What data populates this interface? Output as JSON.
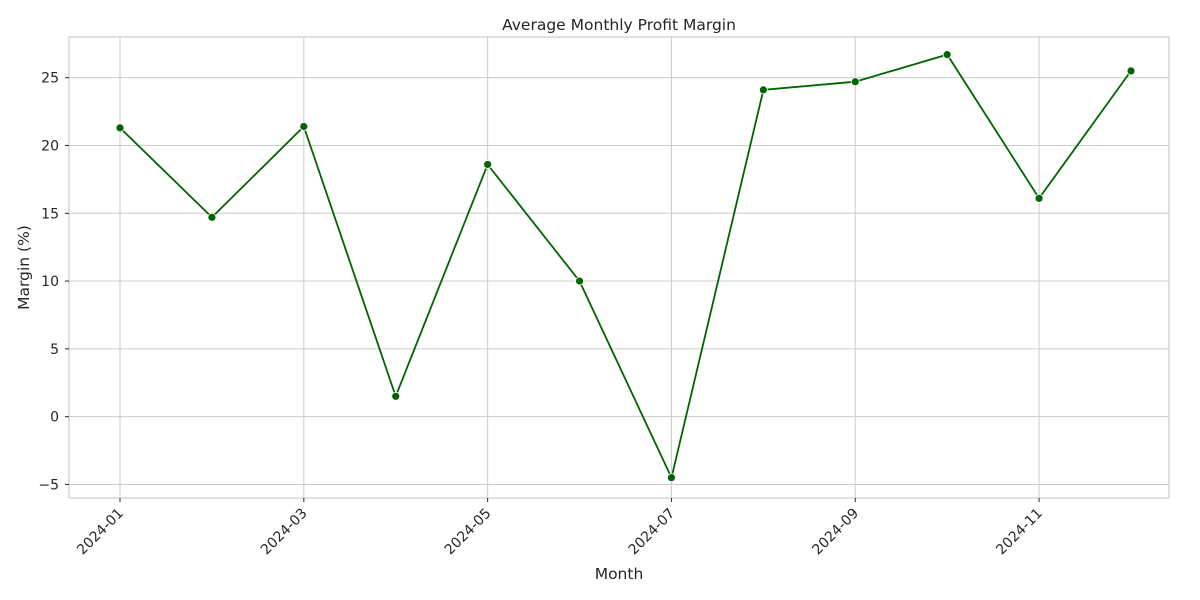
{
  "chart_data": {
    "type": "line",
    "title": "Average Monthly Profit Margin",
    "xlabel": "Month",
    "ylabel": "Margin (%)",
    "x": [
      "2024-01",
      "2024-02",
      "2024-03",
      "2024-04",
      "2024-05",
      "2024-06",
      "2024-07",
      "2024-08",
      "2024-09",
      "2024-10",
      "2024-11",
      "2024-12"
    ],
    "series": [
      {
        "values": [
          21.3,
          14.7,
          21.4,
          1.5,
          18.6,
          10.0,
          -4.5,
          24.1,
          24.7,
          26.7,
          16.1,
          25.5
        ],
        "color": "#006400"
      }
    ],
    "x_tick_labels": [
      "2024-01",
      "2024-03",
      "2024-05",
      "2024-07",
      "2024-09",
      "2024-11"
    ],
    "y_ticks": [
      -5,
      0,
      5,
      10,
      15,
      20,
      25
    ],
    "ylim": [
      -6,
      28
    ],
    "grid": true,
    "legend": "none"
  }
}
